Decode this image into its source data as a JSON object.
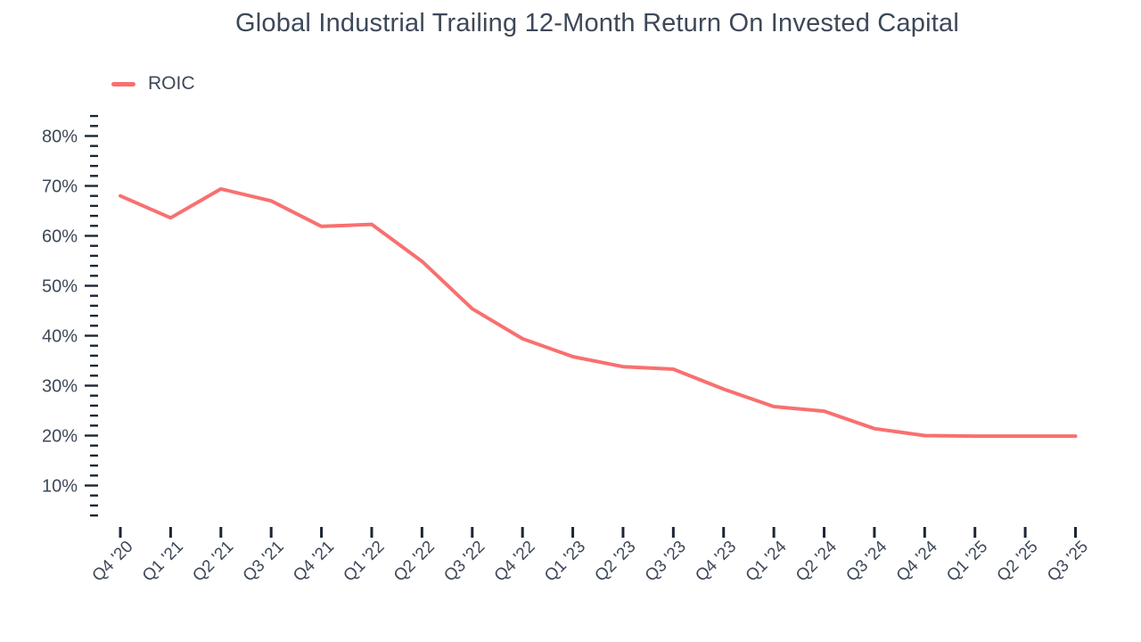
{
  "header": {
    "title": "Global Industrial Trailing 12-Month Return On Invested Capital"
  },
  "legend": {
    "label": "ROIC",
    "swatch_color": "#f87070"
  },
  "colors": {
    "accent_line": "#f87070",
    "text": "#3d4858",
    "tick": "#1c2634"
  },
  "chart_data": {
    "type": "line",
    "title": "Global Industrial Trailing 12-Month Return On Invested Capital",
    "xlabel": "",
    "ylabel": "",
    "grid": false,
    "legend_position": "top-left",
    "categories": [
      "Q4 '20",
      "Q1 '21",
      "Q2 '21",
      "Q3 '21",
      "Q4 '21",
      "Q1 '22",
      "Q2 '22",
      "Q3 '22",
      "Q4 '22",
      "Q1 '23",
      "Q2 '23",
      "Q3 '23",
      "Q4 '23",
      "Q1 '24",
      "Q2 '24",
      "Q3 '24",
      "Q4 '24",
      "Q1 '25",
      "Q2 '25",
      "Q3 '25"
    ],
    "series": [
      {
        "name": "ROIC",
        "color": "#f87070",
        "unit": "%",
        "values": [
          68.0,
          63.6,
          69.4,
          67.0,
          61.9,
          62.3,
          54.9,
          45.4,
          39.4,
          35.8,
          33.8,
          33.3,
          29.3,
          25.8,
          24.9,
          21.4,
          20.0,
          19.9,
          19.9,
          19.9
        ]
      }
    ],
    "y_axis": {
      "min": 4,
      "max": 84,
      "minor_tick_step": 2,
      "major_tick_step": 10,
      "major_tick_labels": [
        "10%",
        "20%",
        "30%",
        "40%",
        "50%",
        "60%",
        "70%",
        "80%"
      ],
      "label_format": "percent"
    }
  }
}
